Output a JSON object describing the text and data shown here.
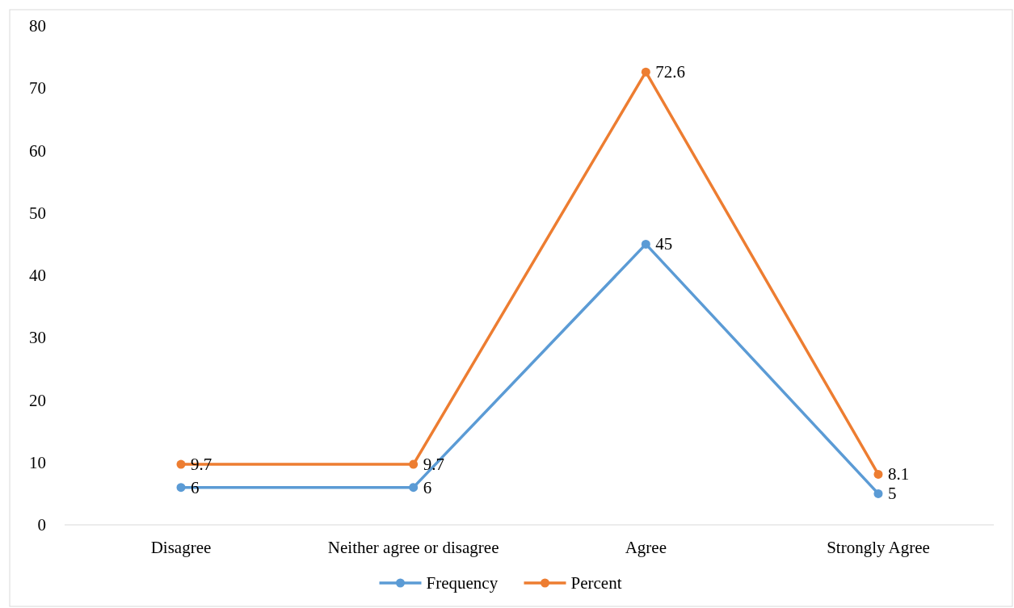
{
  "chart_data": {
    "type": "line",
    "categories": [
      "Disagree",
      "Neither agree or disagree",
      "Agree",
      "Strongly Agree"
    ],
    "series": [
      {
        "name": "Frequency",
        "color": "#5b9bd5",
        "values": [
          6,
          6,
          45,
          5
        ]
      },
      {
        "name": "Percent",
        "color": "#ed7d31",
        "values": [
          9.7,
          9.7,
          72.6,
          8.1
        ]
      }
    ],
    "ylim": [
      0,
      80
    ],
    "yticks": [
      0,
      10,
      20,
      30,
      40,
      50,
      60,
      70,
      80
    ],
    "data_labels": true,
    "legend": "bottom",
    "marker": "circle",
    "line_style": "solid",
    "grid": false
  }
}
